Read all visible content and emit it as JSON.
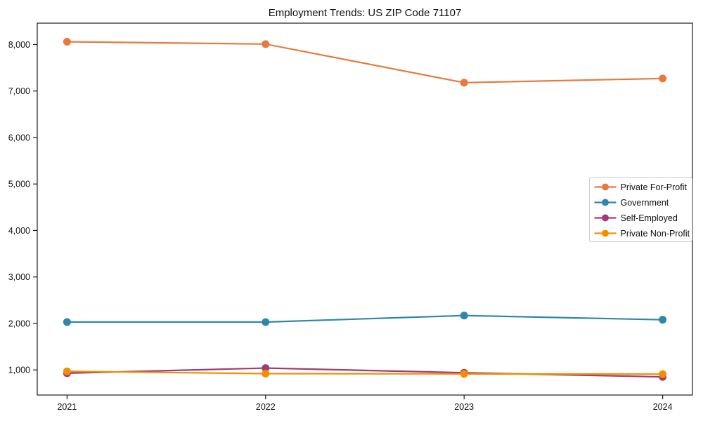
{
  "figure": {
    "title": "Employment Trends: US ZIP Code 71107",
    "background": "#ffffff",
    "axis_color": "#1a1a1a",
    "text_color": "#111111"
  },
  "chart_data": {
    "type": "line",
    "title": "Employment Trends: US ZIP Code 71107",
    "x": [
      2021,
      2022,
      2023,
      2024
    ],
    "x_tick_labels": [
      "2021",
      "2022",
      "2023",
      "2024"
    ],
    "series": [
      {
        "name": "Private For-Profit",
        "color": "#E8793E",
        "values": [
          8060,
          8010,
          7180,
          7270
        ]
      },
      {
        "name": "Government",
        "color": "#2E86AB",
        "values": [
          2030,
          2030,
          2170,
          2080
        ]
      },
      {
        "name": "Self-Employed",
        "color": "#A23B72",
        "values": [
          930,
          1040,
          940,
          850
        ]
      },
      {
        "name": "Private Non-Profit",
        "color": "#F18F01",
        "values": [
          970,
          920,
          915,
          910
        ]
      }
    ],
    "yticks": [
      1000,
      2000,
      3000,
      4000,
      5000,
      6000,
      7000,
      8000
    ],
    "ytick_labels": [
      "1,000",
      "2,000",
      "3,000",
      "4,000",
      "5,000",
      "6,000",
      "7,000",
      "8,000"
    ],
    "ylim": [
      460,
      8460
    ],
    "xlim": [
      2020.85,
      2024.15
    ],
    "grid": false,
    "marker": "circle",
    "legend": {
      "position": "middle-right",
      "entries": [
        "Private For-Profit",
        "Government",
        "Self-Employed",
        "Private Non-Profit"
      ]
    }
  }
}
